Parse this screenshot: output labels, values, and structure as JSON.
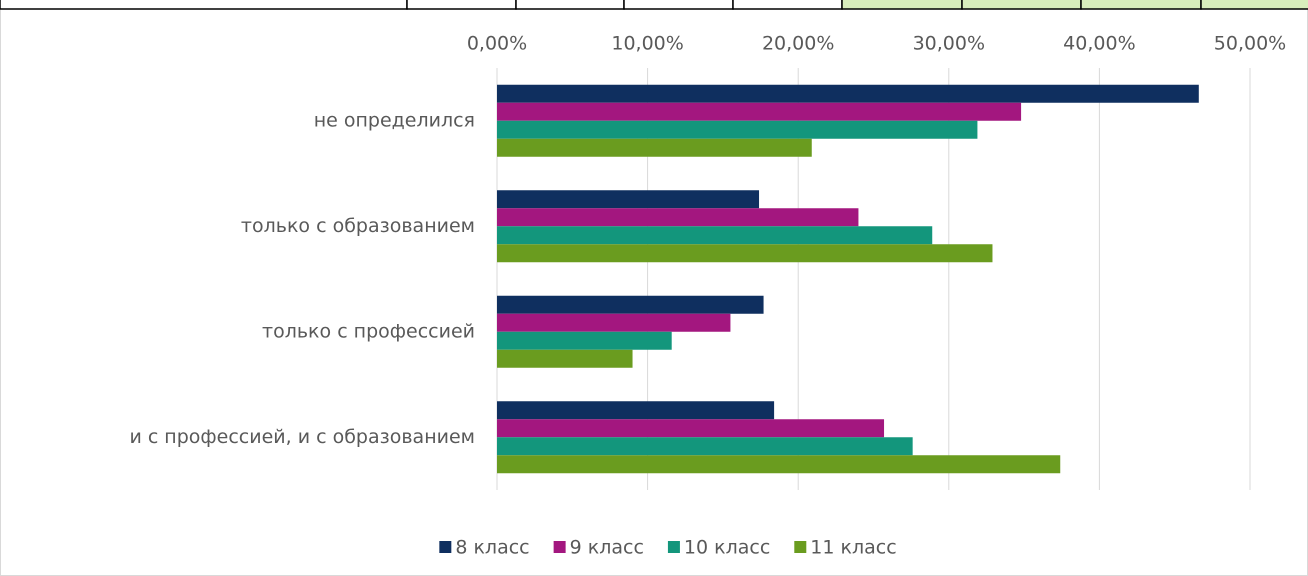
{
  "chart_data": {
    "type": "hbar",
    "categories": [
      "не определился",
      "только с образованием",
      "только с профессией",
      "и с профессией, и с образованием"
    ],
    "series": [
      {
        "name": "8 класс",
        "color": "#0f2f5f",
        "values": [
          46.6,
          17.4,
          17.7,
          18.4
        ]
      },
      {
        "name": "9 класс",
        "color": "#a3177f",
        "values": [
          34.8,
          24.0,
          15.5,
          25.7
        ]
      },
      {
        "name": "10 класс",
        "color": "#13967c",
        "values": [
          31.9,
          28.9,
          11.6,
          27.6
        ]
      },
      {
        "name": "11 класс",
        "color": "#6a9c1f",
        "values": [
          20.9,
          32.9,
          9.0,
          37.4
        ]
      }
    ],
    "xlim": [
      0,
      50
    ],
    "xticks": [
      {
        "value": 0,
        "label": "0,00%"
      },
      {
        "value": 10,
        "label": "10,00%"
      },
      {
        "value": 20,
        "label": "20,00%"
      },
      {
        "value": 30,
        "label": "30,00%"
      },
      {
        "value": 40,
        "label": "40,00%"
      },
      {
        "value": 50,
        "label": "50,00%"
      }
    ],
    "grid": true,
    "legend": "bottom"
  }
}
